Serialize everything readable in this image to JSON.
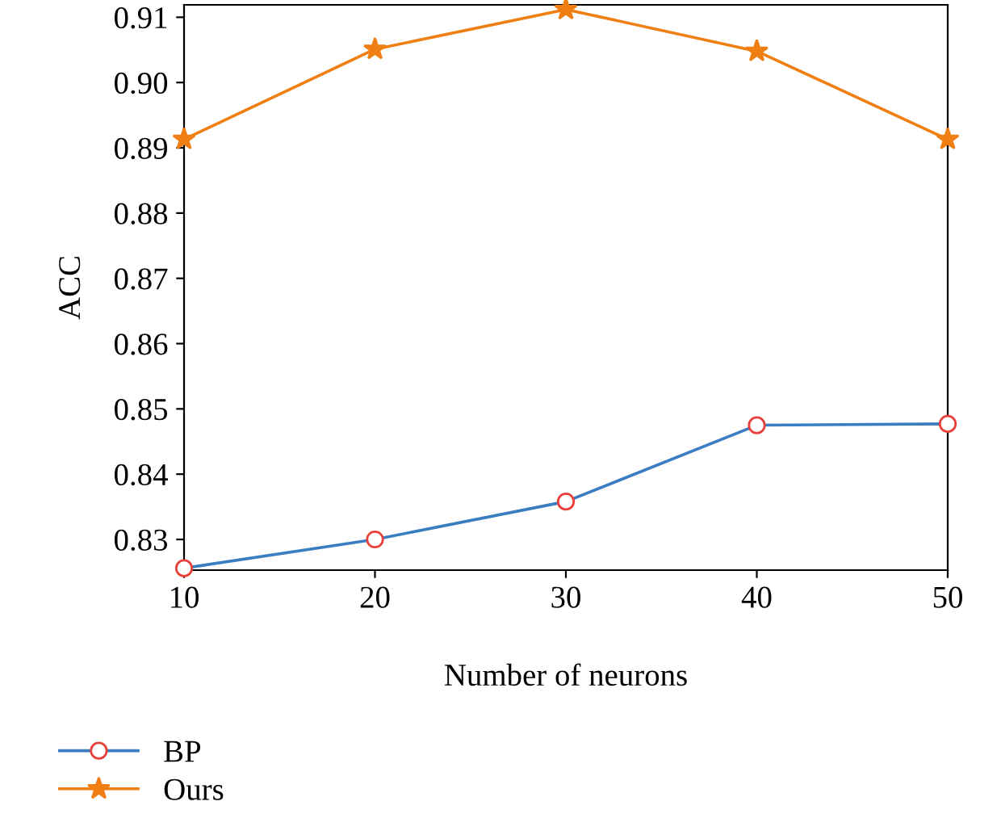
{
  "chart_data": {
    "type": "line",
    "xlabel": "Number of neurons",
    "ylabel": "ACC",
    "x": [
      10,
      20,
      30,
      40,
      50
    ],
    "series": [
      {
        "name": "BP",
        "color": "#3a7dc0",
        "marker": "circle",
        "values": [
          0.8256,
          0.83,
          0.8358,
          0.8475,
          0.8477
        ]
      },
      {
        "name": "Ours",
        "color": "#f07f13",
        "marker": "star",
        "values": [
          0.8913,
          0.9051,
          0.9112,
          0.9048,
          0.8913
        ]
      }
    ],
    "xlim": [
      10,
      50
    ],
    "xticks": [
      10,
      20,
      30,
      40,
      50
    ],
    "ylim": [
      0.8253,
      0.9119
    ],
    "yticks": [
      0.83,
      0.84,
      0.85,
      0.86,
      0.87,
      0.88,
      0.89,
      {
        "value": 0.9,
        "label": "0.90"
      },
      0.91
    ],
    "grid": false,
    "legend": "bottom left"
  }
}
